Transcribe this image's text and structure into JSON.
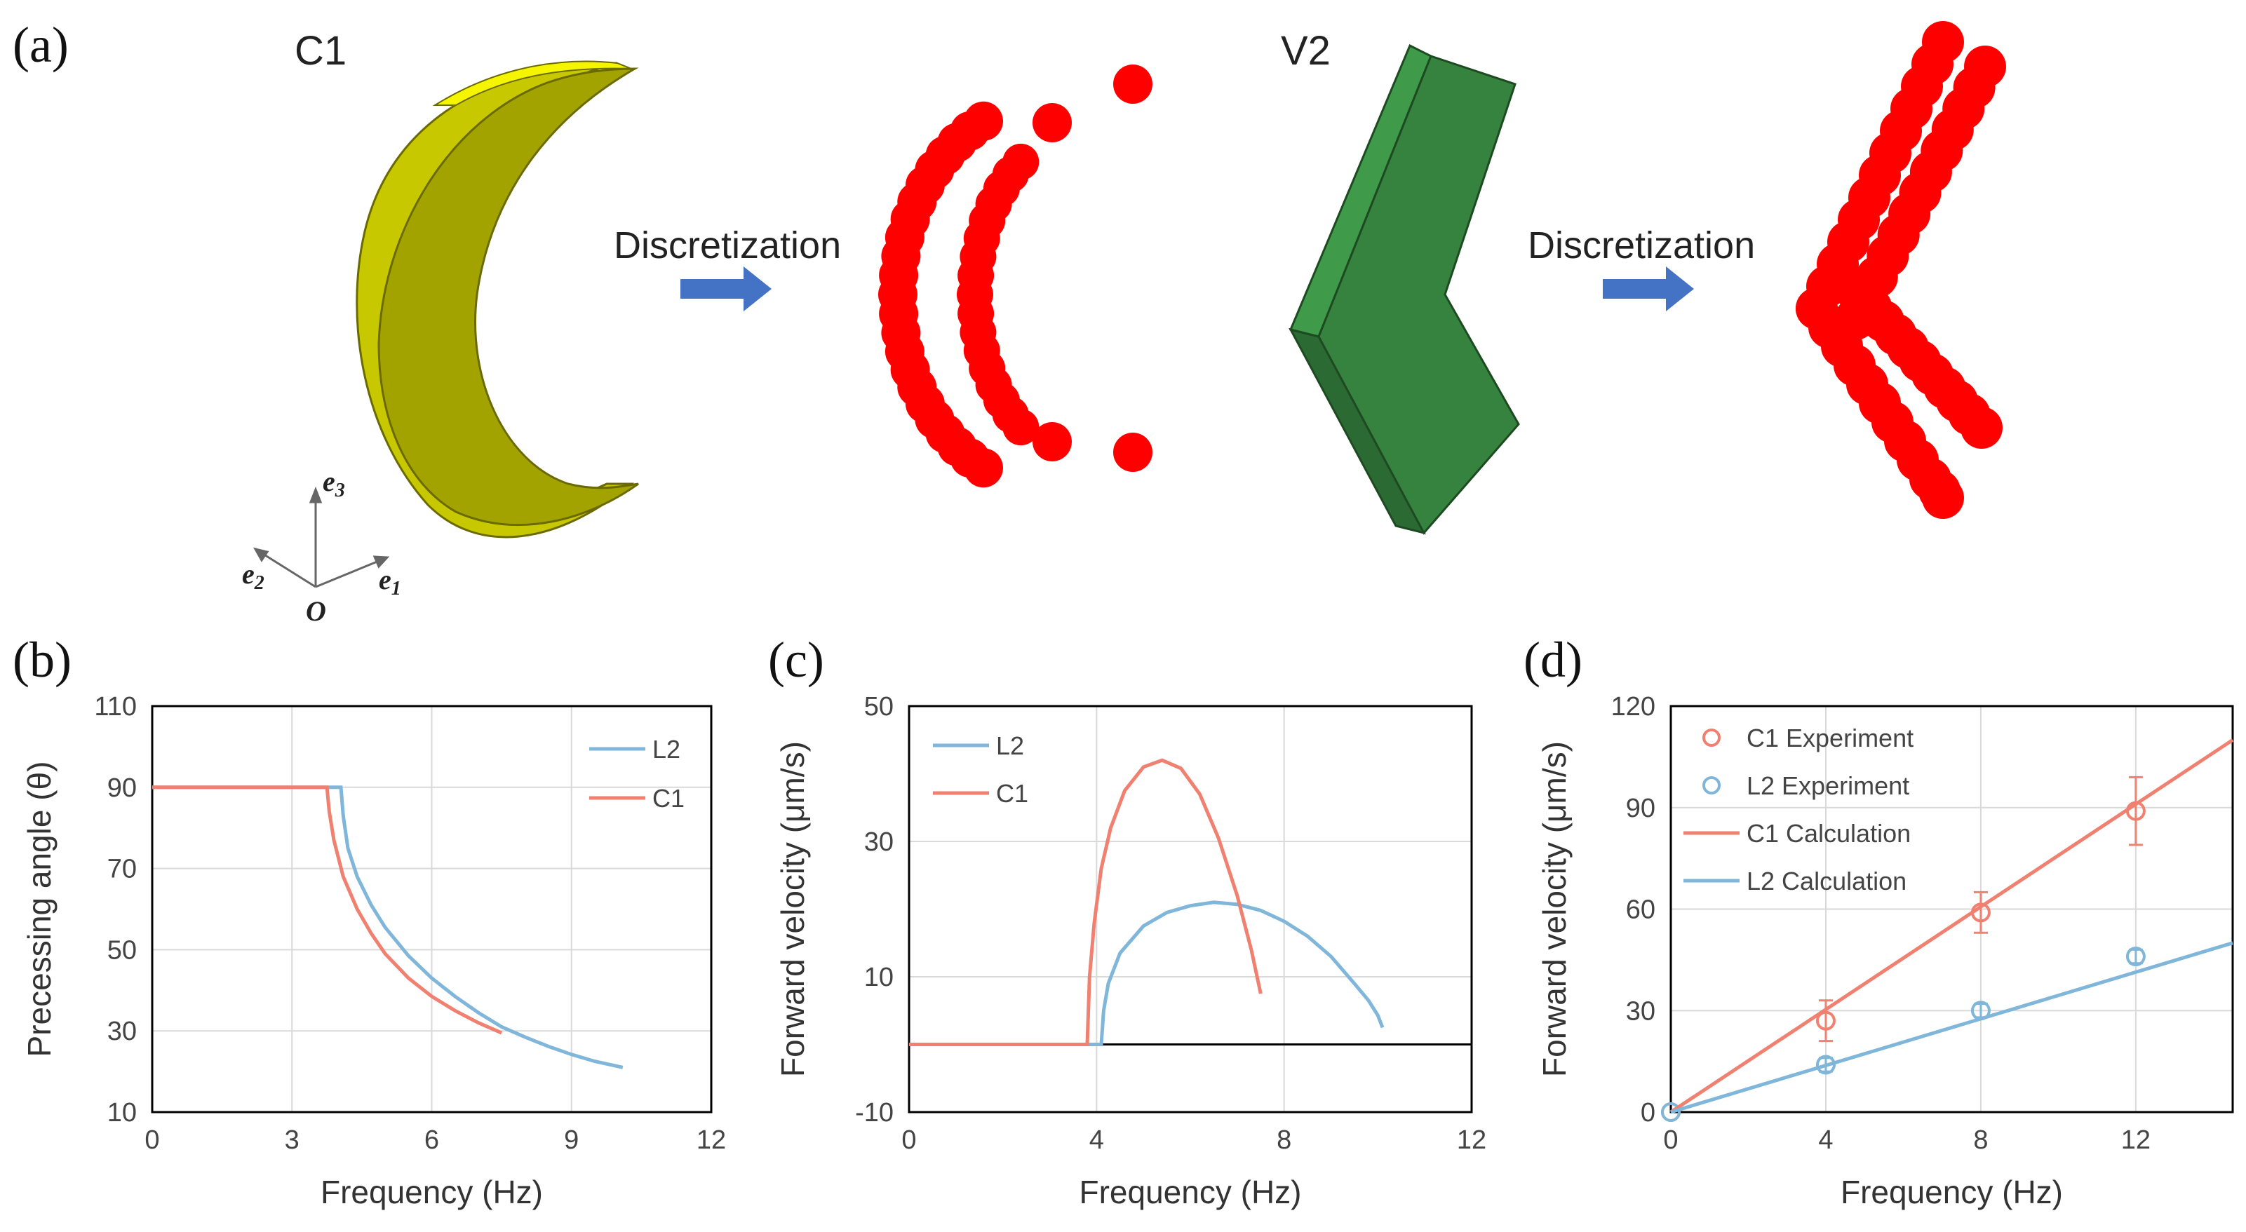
{
  "panel_a": {
    "letter": "(a)",
    "c1_label": "C1",
    "v2_label": "V2",
    "arrow_text_1": "Discretization",
    "arrow_text_2": "Discretization",
    "axes_labels": {
      "e1": "e",
      "e1_sub": "1",
      "e2": "e",
      "e2_sub": "2",
      "e3": "e",
      "e3_sub": "3",
      "origin": "O"
    },
    "colors": {
      "crescent": "#a3a300",
      "crescent_side": "#ecec00",
      "vshape": "#3a8a44",
      "vshape_side": "#2b6a33",
      "particles": "#ff0000",
      "arrow": "#4472c4"
    }
  },
  "chart_data": [
    {
      "id": "b",
      "letter": "(b)",
      "type": "line",
      "title": "",
      "xlabel": "Frequency (Hz)",
      "ylabel": "Precessing angle (θ)",
      "xlim": [
        0,
        12
      ],
      "ylim": [
        10,
        110
      ],
      "xticks": [
        0,
        3,
        6,
        9,
        12
      ],
      "yticks": [
        10,
        30,
        50,
        70,
        90,
        110
      ],
      "xtick_labels": [
        "0",
        "3",
        "6",
        "9",
        "12"
      ],
      "ytick_labels": [
        "10",
        "30",
        "50",
        "70",
        "90",
        "110"
      ],
      "grid": true,
      "legend_position": "top-right",
      "series": [
        {
          "name": "L2",
          "color": "#7fb6d9",
          "x": [
            0,
            4.05,
            4.1,
            4.2,
            4.4,
            4.7,
            5.0,
            5.5,
            6.0,
            6.5,
            7.0,
            7.5,
            8.0,
            8.5,
            9.0,
            9.5,
            10.1
          ],
          "y": [
            90,
            90,
            83,
            75,
            68,
            61,
            55.5,
            48.5,
            43,
            38.5,
            34.5,
            31,
            28.5,
            26.2,
            24.2,
            22.5,
            21
          ]
        },
        {
          "name": "C1",
          "color": "#f08070",
          "x": [
            0,
            3.75,
            3.8,
            3.9,
            4.1,
            4.4,
            4.7,
            5.0,
            5.5,
            6.0,
            6.5,
            7.0,
            7.5
          ],
          "y": [
            90,
            90,
            84,
            77,
            68,
            60,
            54,
            49,
            43,
            38.5,
            35,
            32,
            29.5
          ]
        }
      ]
    },
    {
      "id": "c",
      "letter": "(c)",
      "type": "line",
      "title": "",
      "xlabel": "Frequency (Hz)",
      "ylabel": "Forward velocity (μm/s)",
      "xlim": [
        0,
        12
      ],
      "ylim": [
        -10,
        50
      ],
      "xticks": [
        0,
        4,
        8,
        12
      ],
      "yticks": [
        -10,
        10,
        30,
        50
      ],
      "xtick_labels": [
        "0",
        "4",
        "8",
        "12"
      ],
      "ytick_labels": [
        "-10",
        "10",
        "30",
        "50"
      ],
      "grid": true,
      "zero_line": true,
      "legend_position": "top-left",
      "series": [
        {
          "name": "L2",
          "color": "#7fb6d9",
          "x": [
            0,
            4.1,
            4.15,
            4.25,
            4.5,
            5.0,
            5.5,
            6.0,
            6.5,
            7.0,
            7.5,
            8.0,
            8.5,
            9.0,
            9.5,
            9.8,
            10.0,
            10.1
          ],
          "y": [
            0,
            0,
            5,
            9,
            13.5,
            17.5,
            19.5,
            20.5,
            21,
            20.7,
            19.8,
            18.2,
            16,
            13,
            9,
            6.5,
            4.3,
            2.5
          ]
        },
        {
          "name": "C1",
          "color": "#f08070",
          "x": [
            0,
            3.8,
            3.85,
            3.95,
            4.1,
            4.3,
            4.6,
            5.0,
            5.4,
            5.8,
            6.2,
            6.6,
            7.0,
            7.3,
            7.5
          ],
          "y": [
            0,
            0,
            10,
            18,
            26,
            32,
            37.5,
            41,
            42,
            40.8,
            37,
            30.5,
            22,
            14,
            7.5
          ]
        }
      ]
    },
    {
      "id": "d",
      "letter": "(d)",
      "type": "line",
      "title": "",
      "xlabel": "Frequency (Hz)",
      "ylabel": "Forward velocity (μm/s)",
      "xlim": [
        0,
        14.5
      ],
      "ylim": [
        0,
        120
      ],
      "xticks": [
        0,
        4,
        8,
        12
      ],
      "yticks": [
        0,
        30,
        60,
        90,
        120
      ],
      "xtick_labels": [
        "0",
        "4",
        "8",
        "12"
      ],
      "ytick_labels": [
        "0",
        "30",
        "60",
        "90",
        "120"
      ],
      "grid": true,
      "legend_position": "top-left",
      "series": [
        {
          "name": "C1 Experiment",
          "kind": "marker",
          "color": "#f08070",
          "x": [
            0,
            4,
            8,
            12
          ],
          "y": [
            0,
            27,
            59,
            89
          ],
          "err": [
            0,
            6,
            6,
            10
          ]
        },
        {
          "name": "L2 Experiment",
          "kind": "marker",
          "color": "#7fb6d9",
          "x": [
            0,
            4,
            8,
            12
          ],
          "y": [
            0,
            14,
            30,
            46
          ],
          "err": [
            0,
            2,
            2,
            2
          ]
        },
        {
          "name": "C1 Calculation",
          "kind": "line",
          "color": "#f08070",
          "x": [
            0,
            14.5
          ],
          "y": [
            0,
            110
          ]
        },
        {
          "name": "L2 Calculation",
          "kind": "line",
          "color": "#7fb6d9",
          "x": [
            0,
            14.5
          ],
          "y": [
            0,
            50
          ]
        }
      ]
    }
  ]
}
